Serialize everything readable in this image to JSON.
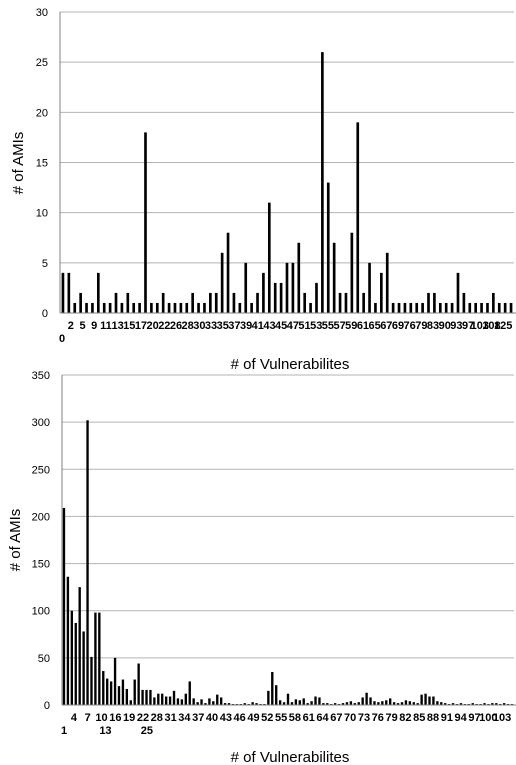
{
  "chart_data": [
    {
      "type": "bar",
      "xlabel": "# of Vulnerabilites",
      "ylabel": "# of AMIs",
      "ylim": [
        0,
        30
      ],
      "y_ticks": [
        0,
        5,
        10,
        15,
        20,
        25,
        30
      ],
      "grid": true,
      "tick_rows": [
        [
          "2",
          "5",
          "9",
          "11",
          "13",
          "15",
          "17",
          "20",
          "22",
          "26",
          "28",
          "30",
          "33",
          "35",
          "37",
          "39",
          "41",
          "43",
          "45",
          "47",
          "51",
          "53",
          "55",
          "57",
          "59",
          "61",
          "65",
          "67",
          "69",
          "76",
          "79",
          "83",
          "90",
          "93",
          "97",
          "103",
          "108",
          "125"
        ],
        [
          "0",
          "",
          "",
          "",
          "",
          "",
          "",
          "",
          "",
          "",
          "",
          "",
          "",
          "",
          "",
          "",
          "",
          "",
          "",
          "",
          "",
          "",
          "",
          "",
          "",
          "",
          "",
          "",
          "",
          "",
          "",
          "",
          "",
          "",
          "",
          "",
          "",
          ""
        ]
      ],
      "values": [
        4,
        4,
        1,
        2,
        1,
        1,
        4,
        1,
        1,
        2,
        1,
        2,
        1,
        1,
        18,
        1,
        1,
        2,
        1,
        1,
        1,
        1,
        2,
        1,
        1,
        2,
        2,
        6,
        8,
        2,
        1,
        5,
        1,
        2,
        4,
        11,
        3,
        3,
        5,
        5,
        7,
        2,
        1,
        3,
        26,
        13,
        7,
        2,
        2,
        8,
        19,
        2,
        5,
        1,
        4,
        6,
        1,
        1,
        1,
        1,
        1,
        1,
        2,
        2,
        1,
        1,
        1,
        4,
        2,
        1,
        1,
        1,
        1,
        2,
        1,
        1,
        1
      ]
    },
    {
      "type": "bar",
      "xlabel": "# of Vulnerabilites",
      "ylabel": "# of AMIs",
      "ylim": [
        0,
        350
      ],
      "y_ticks": [
        0,
        50,
        100,
        150,
        200,
        250,
        300,
        350
      ],
      "grid": true,
      "values": [
        209,
        136,
        100,
        87,
        125,
        78,
        302,
        51,
        98,
        98,
        36,
        28,
        25,
        50,
        20,
        27,
        17,
        5,
        27,
        44,
        16,
        16,
        16,
        8,
        12,
        12,
        9,
        9,
        15,
        7,
        6,
        12,
        25,
        7,
        3,
        6,
        2,
        7,
        4,
        11,
        8,
        2,
        2,
        1,
        1,
        1,
        2,
        1,
        3,
        2,
        1,
        1,
        15,
        35,
        21,
        5,
        3,
        12,
        3,
        6,
        5,
        7,
        2,
        4,
        9,
        8,
        2,
        2,
        1,
        2,
        1,
        2,
        3,
        4,
        2,
        3,
        8,
        13,
        8,
        4,
        3,
        4,
        5,
        7,
        3,
        2,
        3,
        5,
        4,
        3,
        2,
        11,
        12,
        9,
        9,
        4,
        3,
        2,
        1,
        2,
        1,
        2,
        1,
        1,
        2,
        1,
        1,
        2,
        1,
        2,
        2,
        1,
        2,
        1,
        1
      ],
      "tick_rows": [
        [
          "4",
          "7",
          "10",
          "16",
          "19",
          "22",
          "28",
          "31",
          "34",
          "37",
          "40",
          "43",
          "46",
          "49",
          "52",
          "55",
          "58",
          "61",
          "64",
          "67",
          "70",
          "73",
          "76",
          "79",
          "82",
          "85",
          "88",
          "91",
          "94",
          "97",
          "100",
          "103"
        ],
        [
          "1",
          "",
          "",
          "13",
          "",
          "",
          "25",
          "",
          "",
          "",
          "",
          "",
          "",
          "",
          "",
          "",
          "",
          "",
          "",
          "",
          "",
          "",
          "",
          "",
          "",
          "",
          "",
          "",
          "",
          "",
          "",
          ""
        ]
      ]
    }
  ]
}
